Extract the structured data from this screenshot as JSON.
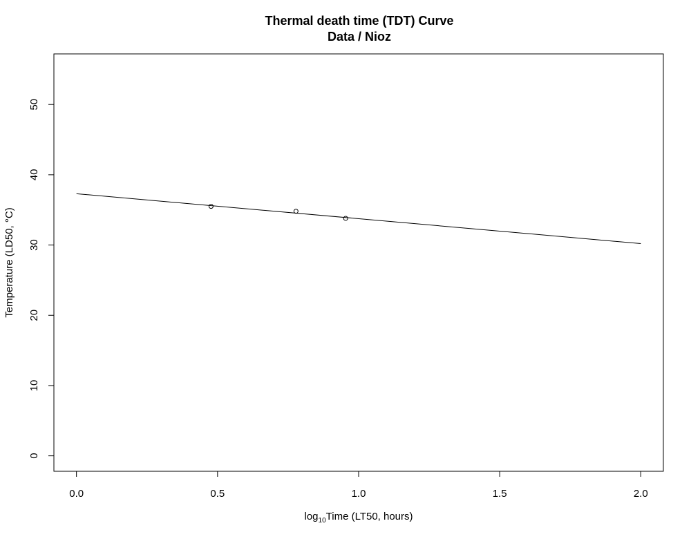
{
  "chart_data": {
    "type": "scatter",
    "title": "Thermal death time (TDT) Curve",
    "subtitle": "Data / Nioz",
    "xlabel": {
      "prefix": "log",
      "subscript": "10",
      "suffix": "Time (LT50, hours)"
    },
    "ylabel": "Temperature (LD50, °C)",
    "xlim": [
      -0.08,
      2.08
    ],
    "ylim": [
      -2.2,
      57.2
    ],
    "x_ticks": [
      0.0,
      0.5,
      1.0,
      1.5,
      2.0
    ],
    "x_tick_labels": [
      "0.0",
      "0.5",
      "1.0",
      "1.5",
      "2.0"
    ],
    "y_ticks": [
      0,
      10,
      20,
      30,
      40,
      50
    ],
    "y_tick_labels": [
      "0",
      "10",
      "20",
      "30",
      "40",
      "50"
    ],
    "grid": false,
    "series": [
      {
        "kind": "points",
        "x": [
          0.477,
          0.778,
          0.954
        ],
        "y": [
          35.5,
          34.8,
          33.8
        ]
      },
      {
        "kind": "fit-line",
        "x": [
          0.0,
          2.0
        ],
        "y": [
          37.3,
          30.2
        ]
      }
    ]
  }
}
